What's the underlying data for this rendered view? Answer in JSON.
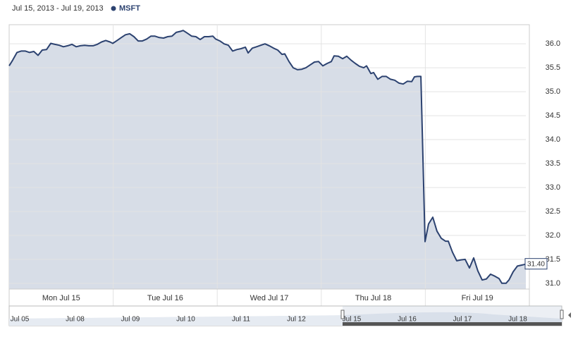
{
  "chart_data": {
    "type": "area",
    "subtitle": "Jul 15, 2013 - Jul 19, 2013",
    "xlim": [
      0,
      5
    ],
    "xticks": [
      {
        "value": 0.5,
        "label": "Mon Jul 15"
      },
      {
        "value": 1.5,
        "label": "Tue Jul 16"
      },
      {
        "value": 2.5,
        "label": "Wed Jul 17"
      },
      {
        "value": 3.5,
        "label": "Thu Jul 18"
      },
      {
        "value": 4.5,
        "label": "Fri Jul 19"
      }
    ],
    "ylim": [
      30.88,
      36.4
    ],
    "yticks": [
      {
        "value": 31,
        "label": "31.0"
      },
      31.5,
      {
        "value": 32,
        "label": "32.0"
      },
      32.5,
      {
        "value": 33,
        "label": "33.0"
      },
      33.5,
      {
        "value": 34,
        "label": "34.0"
      },
      34.5,
      {
        "value": 35,
        "label": "35.0"
      },
      35.5,
      {
        "value": 36,
        "label": "36.0"
      }
    ],
    "grid": true,
    "legend": "top-left",
    "x": [
      0,
      0.034,
      0.075,
      0.115,
      0.156,
      0.196,
      0.237,
      0.278,
      0.318,
      0.359,
      0.4,
      0.44,
      0.481,
      0.522,
      0.562,
      0.603,
      0.644,
      0.684,
      0.725,
      0.766,
      0.806,
      0.847,
      0.888,
      0.928,
      0.969,
      0.996,
      1.037,
      1.077,
      1.118,
      1.159,
      1.199,
      1.24,
      1.28,
      1.321,
      1.362,
      1.402,
      1.443,
      1.484,
      1.524,
      1.565,
      1.606,
      1.646,
      1.673,
      1.714,
      1.755,
      1.795,
      1.836,
      1.877,
      1.917,
      1.958,
      1.985,
      2.026,
      2.066,
      2.107,
      2.148,
      2.188,
      2.229,
      2.27,
      2.297,
      2.337,
      2.378,
      2.419,
      2.459,
      2.5,
      2.541,
      2.581,
      2.622,
      2.649,
      2.69,
      2.73,
      2.771,
      2.812,
      2.852,
      2.893,
      2.934,
      2.974,
      3.015,
      3.056,
      3.096,
      3.123,
      3.164,
      3.205,
      3.245,
      3.286,
      3.327,
      3.367,
      3.408,
      3.435,
      3.476,
      3.503,
      3.543,
      3.584,
      3.625,
      3.665,
      3.706,
      3.747,
      3.787,
      3.828,
      3.869,
      3.896,
      3.923,
      3.957,
      3.997,
      4.031,
      4.072,
      4.112,
      4.153,
      4.194,
      4.221,
      4.261,
      4.302,
      4.343,
      4.383,
      4.424,
      4.465,
      4.505,
      4.546,
      4.587,
      4.627,
      4.668,
      4.709,
      4.736,
      4.776,
      4.804,
      4.844,
      4.885,
      4.926,
      4.966
    ],
    "series": [
      {
        "name": "MSFT",
        "color": "#2c4270",
        "values": [
          35.54,
          35.66,
          35.82,
          35.85,
          35.85,
          35.82,
          35.84,
          35.76,
          35.87,
          35.88,
          36.01,
          35.99,
          35.97,
          35.94,
          35.96,
          35.99,
          35.94,
          35.96,
          35.97,
          35.96,
          35.96,
          35.99,
          36.04,
          36.07,
          36.04,
          36.01,
          36.07,
          36.13,
          36.19,
          36.21,
          36.15,
          36.06,
          36.06,
          36.1,
          36.16,
          36.16,
          36.13,
          36.12,
          36.15,
          36.16,
          36.24,
          36.26,
          36.28,
          36.22,
          36.16,
          36.15,
          36.09,
          36.15,
          36.15,
          36.16,
          36.1,
          36.06,
          36,
          35.97,
          35.85,
          35.88,
          35.9,
          35.93,
          35.81,
          35.91,
          35.94,
          35.97,
          36,
          35.96,
          35.91,
          35.87,
          35.78,
          35.79,
          35.63,
          35.5,
          35.46,
          35.47,
          35.5,
          35.56,
          35.62,
          35.63,
          35.54,
          35.59,
          35.63,
          35.75,
          35.74,
          35.69,
          35.74,
          35.66,
          35.59,
          35.53,
          35.5,
          35.54,
          35.38,
          35.4,
          35.26,
          35.32,
          35.32,
          35.26,
          35.24,
          35.18,
          35.16,
          35.22,
          35.21,
          35.31,
          35.32,
          35.32,
          31.87,
          32.24,
          32.38,
          32.09,
          31.94,
          31.88,
          31.88,
          31.65,
          31.47,
          31.49,
          31.5,
          31.32,
          31.53,
          31.26,
          31.07,
          31.09,
          31.19,
          31.15,
          31.1,
          31,
          31,
          31.07,
          31.24,
          31.36,
          31.38,
          31.4
        ],
        "value_labels": [
          null,
          null,
          null,
          null,
          null,
          null,
          null,
          null,
          null,
          null,
          null,
          null,
          null,
          null,
          null,
          null,
          null,
          null,
          null,
          null,
          null,
          null,
          null,
          null,
          null,
          null,
          null,
          null,
          null,
          null,
          null,
          null,
          null,
          null,
          null,
          null,
          null,
          null,
          null,
          null,
          null,
          null,
          null,
          null,
          null,
          null,
          null,
          null,
          null,
          null,
          null,
          null,
          null,
          null,
          null,
          null,
          null,
          null,
          null,
          null,
          null,
          null,
          null,
          null,
          null,
          null,
          null,
          null,
          null,
          null,
          null,
          null,
          null,
          null,
          null,
          null,
          null,
          null,
          null,
          null,
          null,
          null,
          null,
          null,
          null,
          null,
          null,
          null,
          null,
          null,
          null,
          null,
          null,
          null,
          null,
          null,
          null,
          null,
          null,
          null,
          null,
          null,
          null,
          null,
          null,
          null,
          null,
          null,
          null,
          null,
          null,
          null,
          null,
          null,
          null,
          null,
          null,
          null,
          null,
          null,
          null,
          null,
          null,
          null,
          null,
          null,
          null,
          "31.40"
        ]
      }
    ],
    "navigator": {
      "labels": [
        "Jul 05",
        "Jul 08",
        "Jul 09",
        "Jul 10",
        "Jul 11",
        "Jul 12",
        "Jul 15",
        "Jul 16",
        "Jul 17",
        "Jul 18"
      ]
    }
  }
}
